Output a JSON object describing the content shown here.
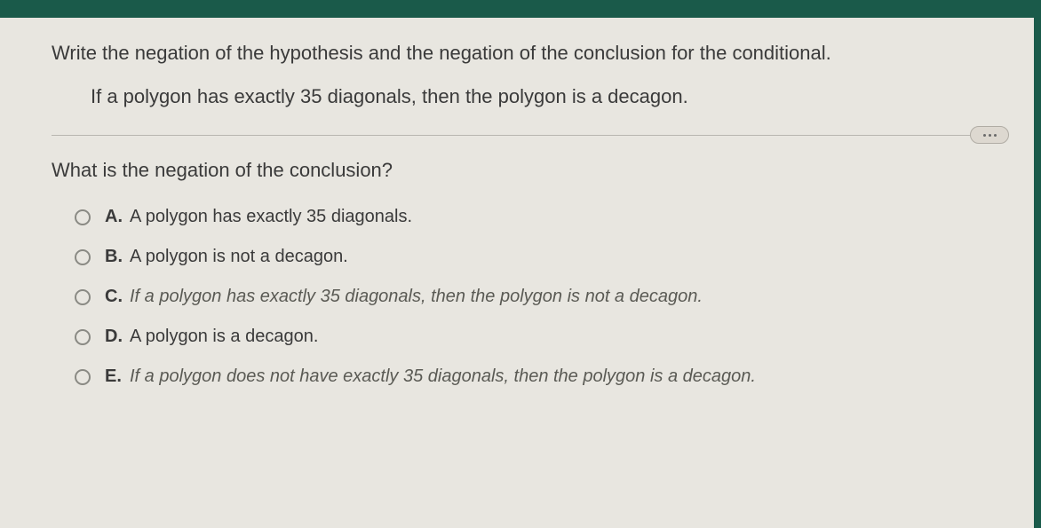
{
  "question": {
    "stem": "Write the negation of the hypothesis and the negation of the conclusion for the conditional.",
    "conditional": "If a polygon has exactly 35 diagonals, then the polygon is a decagon.",
    "sub_question": "What is the negation of the conclusion?"
  },
  "options": [
    {
      "letter": "A.",
      "text": "A polygon has exactly 35 diagonals.",
      "italic": false
    },
    {
      "letter": "B.",
      "text": "A polygon is not a decagon.",
      "italic": false
    },
    {
      "letter": "C.",
      "text": "If a polygon has exactly 35 diagonals, then the polygon is not a decagon.",
      "italic": true
    },
    {
      "letter": "D.",
      "text": "A polygon is a decagon.",
      "italic": false
    },
    {
      "letter": "E.",
      "text": "If a polygon does not have exactly 35 diagonals, then the polygon is a decagon.",
      "italic": true
    }
  ],
  "colors": {
    "page_bg": "#1a5a4a",
    "panel_bg": "#e8e6e0",
    "text": "#3a3a3a",
    "divider": "#b8b6b0",
    "radio_border": "#8a8a84",
    "italic_text": "#5a5a54"
  }
}
